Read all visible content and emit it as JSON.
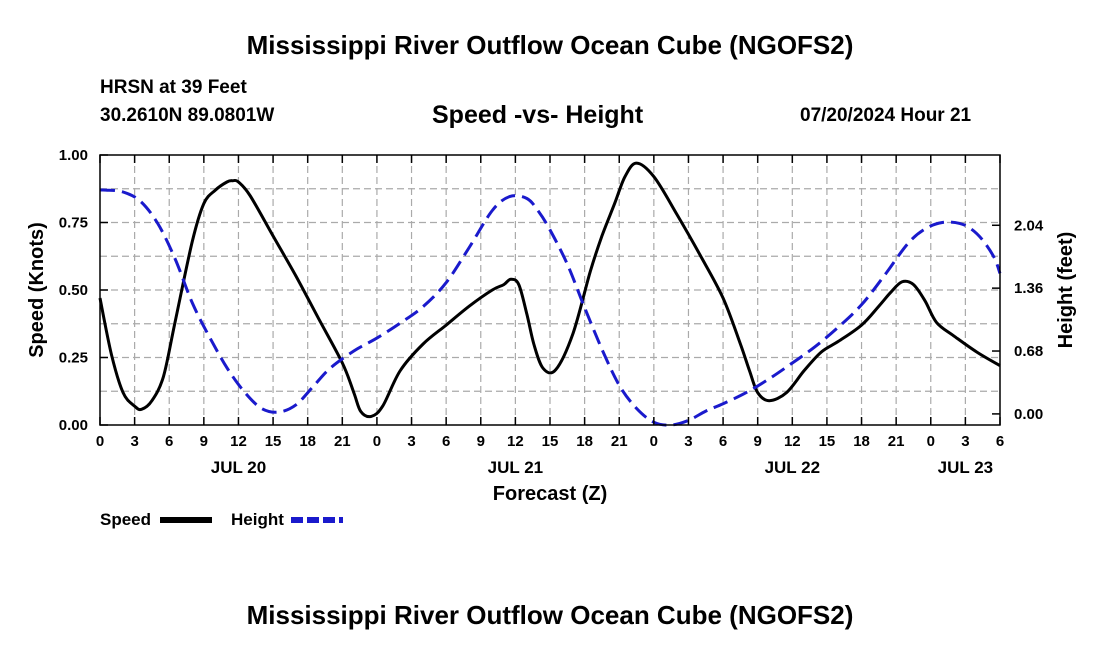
{
  "header": {
    "title": "Mississippi River Outflow Ocean Cube (NGOFS2)",
    "station_name": "HRSN at 39 Feet",
    "station_coords": "30.2610N  89.0801W",
    "subtitle": "Speed -vs- Height",
    "timestamp": "07/20/2024 Hour 21"
  },
  "footer": {
    "title": "Mississippi River Outflow Ocean Cube (NGOFS2)"
  },
  "chart_data": {
    "type": "line",
    "title": "Speed -vs- Height",
    "xlabel": "Forecast (Z)",
    "x_units": "hours from 00Z Jul 20",
    "xlim": [
      0,
      78
    ],
    "x_ticks": [
      0,
      3,
      6,
      9,
      12,
      15,
      18,
      21,
      24,
      27,
      30,
      33,
      36,
      39,
      42,
      45,
      48,
      51,
      54,
      57,
      60,
      63,
      66,
      69,
      72,
      75,
      78
    ],
    "x_tick_labels": [
      "0",
      "3",
      "6",
      "9",
      "12",
      "15",
      "18",
      "21",
      "0",
      "3",
      "6",
      "9",
      "12",
      "15",
      "18",
      "21",
      "0",
      "3",
      "6",
      "9",
      "12",
      "15",
      "18",
      "21",
      "0",
      "3",
      "6"
    ],
    "date_labels": [
      {
        "x": 12,
        "label": "JUL 20"
      },
      {
        "x": 36,
        "label": "JUL 21"
      },
      {
        "x": 60,
        "label": "JUL 22"
      },
      {
        "x": 75,
        "label": "JUL 23"
      }
    ],
    "y_left": {
      "label": "Speed (Knots)",
      "lim": [
        0,
        1
      ],
      "ticks": [
        0,
        0.25,
        0.5,
        0.75,
        1.0
      ],
      "tick_labels": [
        "0.00",
        "0.25",
        "0.50",
        "0.75",
        "1.00"
      ]
    },
    "y_right": {
      "label": "Height (feet)",
      "lim": [
        -0.12,
        2.8
      ],
      "ticks": [
        0.0,
        0.68,
        1.36,
        2.04
      ],
      "tick_labels": [
        "0.00",
        "0.68",
        "1.36",
        "2.04"
      ]
    },
    "grid": true,
    "series": [
      {
        "name": "Speed",
        "axis": "left",
        "color": "#000000",
        "dash": "solid",
        "x": [
          0,
          1,
          2,
          3,
          3.6,
          4.5,
          5.5,
          6.5,
          8,
          9,
          10,
          11,
          11.5,
          12,
          13,
          15,
          17,
          19,
          21,
          22,
          22.6,
          23.5,
          24.5,
          26,
          28,
          30,
          32,
          34,
          35,
          35.6,
          36.3,
          37,
          37.6,
          38.4,
          39.5,
          41,
          42.5,
          43.5,
          44.6,
          45.5,
          46.5,
          48,
          50,
          52,
          54,
          55.5,
          56.3,
          57,
          58,
          59.5,
          61,
          62.5,
          64,
          66,
          67.5,
          68.5,
          69.5,
          70.5,
          71.5,
          72.5,
          74,
          76,
          78
        ],
        "y": [
          0.47,
          0.26,
          0.12,
          0.07,
          0.058,
          0.09,
          0.18,
          0.38,
          0.68,
          0.82,
          0.87,
          0.9,
          0.905,
          0.9,
          0.85,
          0.7,
          0.55,
          0.39,
          0.23,
          0.12,
          0.05,
          0.032,
          0.07,
          0.2,
          0.3,
          0.37,
          0.44,
          0.5,
          0.52,
          0.54,
          0.52,
          0.41,
          0.3,
          0.21,
          0.205,
          0.34,
          0.57,
          0.7,
          0.82,
          0.92,
          0.97,
          0.92,
          0.78,
          0.63,
          0.47,
          0.3,
          0.2,
          0.12,
          0.09,
          0.12,
          0.2,
          0.27,
          0.31,
          0.37,
          0.44,
          0.49,
          0.53,
          0.52,
          0.46,
          0.38,
          0.33,
          0.27,
          0.22
        ]
      },
      {
        "name": "Height",
        "axis": "right",
        "color": "#1a1acc",
        "dash": "dashed",
        "x": [
          0,
          0.5,
          2,
          3.5,
          5,
          6.5,
          8,
          9.5,
          11,
          12.5,
          14,
          15.5,
          17,
          18.5,
          20,
          22,
          24,
          26,
          28,
          30,
          32,
          34,
          35.5,
          37,
          38,
          39,
          40.5,
          42,
          43.5,
          45,
          46.5,
          48,
          49.5,
          51,
          52.5,
          54,
          56,
          58,
          60,
          62,
          64,
          66,
          68,
          70,
          71.5,
          73,
          74.5,
          75.5,
          76.5,
          77.5,
          78
        ],
        "y": [
          2.42,
          2.42,
          2.4,
          2.3,
          2.06,
          1.68,
          1.2,
          0.83,
          0.5,
          0.24,
          0.06,
          0.02,
          0.1,
          0.3,
          0.5,
          0.68,
          0.82,
          0.98,
          1.16,
          1.42,
          1.8,
          2.2,
          2.35,
          2.33,
          2.19,
          1.99,
          1.62,
          1.15,
          0.7,
          0.31,
          0.06,
          -0.09,
          -0.12,
          -0.07,
          0.03,
          0.11,
          0.23,
          0.38,
          0.55,
          0.73,
          0.94,
          1.18,
          1.5,
          1.84,
          2.0,
          2.07,
          2.06,
          2.0,
          1.88,
          1.69,
          1.52
        ]
      }
    ]
  },
  "legend": {
    "placement": "bottom-left",
    "items": [
      {
        "label": "Speed",
        "color": "#000000",
        "dash": "solid"
      },
      {
        "label": "Height",
        "color": "#1a1acc",
        "dash": "dashed"
      }
    ]
  }
}
